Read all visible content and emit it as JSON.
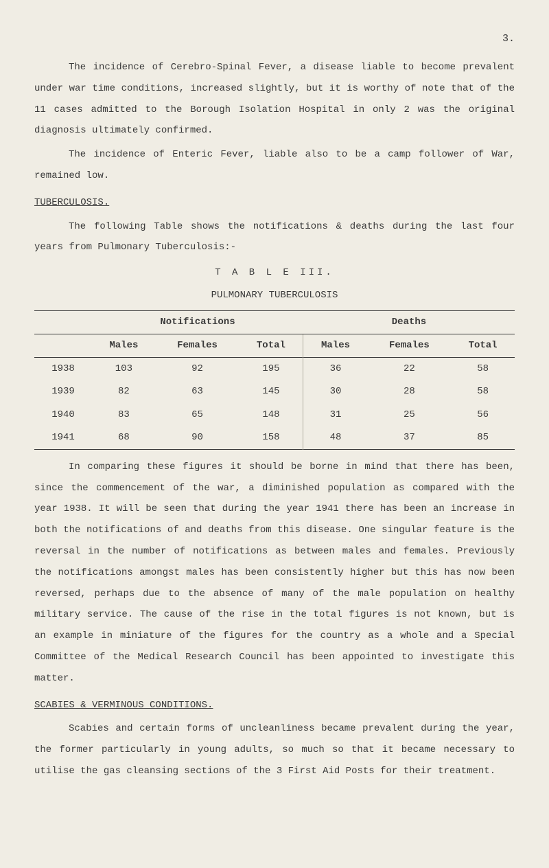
{
  "page_number": "3.",
  "para1": "The incidence of Cerebro-Spinal Fever, a disease liable to become prevalent under war time conditions, increased slightly, but it is worthy of note that of the 11 cases admitted to the Borough Isolation Hospital in only 2 was the original diagnosis ultimately confirmed.",
  "para2": "The incidence of Enteric Fever, liable also to be a camp follower of War, remained low.",
  "heading1": "TUBERCULOSIS.",
  "para3": "The following Table shows the notifications & deaths during the last four years from Pulmonary Tuberculosis:-",
  "table_title": "T A B L E   III.",
  "table_subtitle": "PULMONARY TUBERCULOSIS",
  "table": {
    "group_headers": [
      "",
      "Notifications",
      "Deaths"
    ],
    "columns": [
      "",
      "Males",
      "Females",
      "Total",
      "Males",
      "Females",
      "Total"
    ],
    "rows": [
      [
        "1938",
        "103",
        "92",
        "195",
        "36",
        "22",
        "58"
      ],
      [
        "1939",
        "82",
        "63",
        "145",
        "30",
        "28",
        "58"
      ],
      [
        "1940",
        "83",
        "65",
        "148",
        "31",
        "25",
        "56"
      ],
      [
        "1941",
        "68",
        "90",
        "158",
        "48",
        "37",
        "85"
      ]
    ]
  },
  "para4": "In comparing these figures it should be borne in mind that there has been, since the commencement of the war, a diminished population as compared with the year 1938.  It will be seen that during the year 1941 there has been an increase in both the notifications of and deaths from this disease.  One singular feature is the reversal in the number of notifications as between males and females.  Previously the notifications amongst males has been consistently higher but this has now been reversed, perhaps due to the absence of many of the male population on healthy military service.  The cause of the rise in the total figures is not known, but is an example in miniature of the figures for the country as a whole and a Special Committee of the Medical Research Council has been appointed to investigate this matter.",
  "heading2": "SCABIES & VERMINOUS CONDITIONS.",
  "para5": "Scabies and certain forms of uncleanliness became prevalent during the year, the former particularly in young adults, so much so that it became necessary to utilise the gas cleansing sections of the 3 First Aid Posts for their treatment."
}
